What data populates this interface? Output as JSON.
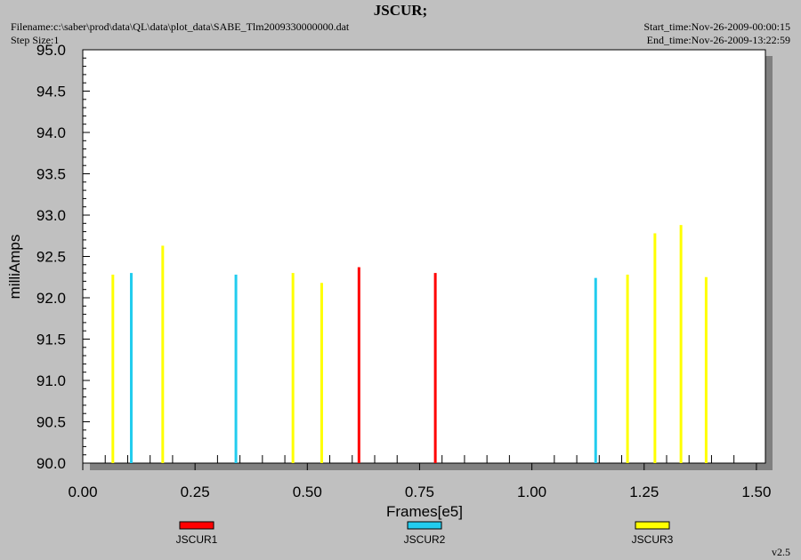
{
  "header": {
    "title": "JSCUR;",
    "filename": "Filename:c:\\saber\\prod\\data\\QL\\data\\plot_data\\SABE_Tlm2009330000000.dat",
    "step_size": "Step Size:1",
    "start_time": "Start_time:Nov-26-2009-00:00:15",
    "end_time": "End_time:Nov-26-2009-13:22:59"
  },
  "version": "v2.5",
  "chart_data": {
    "type": "bar",
    "title": "JSCUR;",
    "xlabel": "Frames[e5]",
    "ylabel": "milliAmps",
    "xlim": [
      0.0,
      1.52
    ],
    "ylim": [
      90.0,
      95.0
    ],
    "xticks": [
      "0.00",
      "0.25",
      "0.50",
      "0.75",
      "1.00",
      "1.25",
      "1.50"
    ],
    "yticks": [
      "90.0",
      "90.5",
      "91.0",
      "91.5",
      "92.0",
      "92.5",
      "93.0",
      "93.5",
      "94.0",
      "94.5",
      "95.0"
    ],
    "legend_position": "bottom",
    "series": [
      {
        "name": "JSCUR1",
        "color": "#ff0000",
        "x": [
          0.615,
          0.785
        ],
        "y": [
          92.37,
          92.3
        ]
      },
      {
        "name": "JSCUR2",
        "color": "#22ccee",
        "x": [
          0.108,
          0.341,
          1.142
        ],
        "y": [
          92.3,
          92.28,
          92.24
        ]
      },
      {
        "name": "JSCUR3",
        "color": "#ffff00",
        "x": [
          0.067,
          0.178,
          0.468,
          0.532,
          1.213,
          1.274,
          1.332,
          1.388
        ],
        "y": [
          92.28,
          92.63,
          92.3,
          92.18,
          92.28,
          92.78,
          92.88,
          92.25
        ]
      }
    ]
  }
}
